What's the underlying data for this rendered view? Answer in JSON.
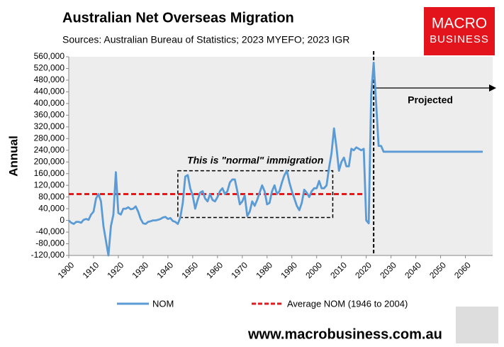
{
  "chart_data": {
    "type": "line",
    "title": "Australian Net Overseas Migration",
    "subtitle": "Sources: Australian Bureau of Statistics; 2023 MYEFO; 2023 IGR",
    "y_label": "Annual",
    "logo": [
      "MACRO",
      "BUSINESS"
    ],
    "footer": "www.macrobusiness.com.au",
    "xlim": [
      1900,
      2071
    ],
    "xticks": [
      1900,
      1910,
      1920,
      1930,
      1940,
      1950,
      1960,
      1970,
      1980,
      1990,
      2000,
      2010,
      2020,
      2030,
      2040,
      2050,
      2060
    ],
    "ylim": [
      -120000,
      560000
    ],
    "yticks": [
      {
        "value": -120000,
        "label": "-120,000"
      },
      {
        "value": -80000,
        "label": "-80,000"
      },
      {
        "value": -40000,
        "label": "-40,000"
      },
      0,
      {
        "value": 40000,
        "label": "40,000"
      },
      {
        "value": 80000,
        "label": "80,000"
      },
      {
        "value": 120000,
        "label": "120,000"
      },
      {
        "value": 160000,
        "label": "160,000"
      },
      {
        "value": 200000,
        "label": "200,000"
      },
      {
        "value": 240000,
        "label": "240,000"
      },
      {
        "value": 280000,
        "label": "280,000"
      },
      {
        "value": 320000,
        "label": "320,000"
      },
      {
        "value": 360000,
        "label": "360,000"
      },
      {
        "value": 400000,
        "label": "400,000"
      },
      {
        "value": 440000,
        "label": "440,000"
      },
      {
        "value": 480000,
        "label": "480,000"
      },
      {
        "value": 520000,
        "label": "520,000"
      },
      {
        "value": 560000,
        "label": "560,000"
      }
    ],
    "grid": false,
    "series": [
      {
        "name": "NOM",
        "color": "#5b9bd5",
        "line_style": "solid",
        "x": [
          1900,
          1901,
          1902,
          1903,
          1904,
          1905,
          1906,
          1907,
          1908,
          1909,
          1910,
          1911,
          1912,
          1913,
          1914,
          1915,
          1916,
          1917,
          1918,
          1919,
          1920,
          1921,
          1922,
          1923,
          1924,
          1925,
          1926,
          1927,
          1928,
          1929,
          1930,
          1931,
          1932,
          1933,
          1934,
          1935,
          1936,
          1937,
          1938,
          1939,
          1940,
          1941,
          1942,
          1943,
          1944,
          1945,
          1946,
          1947,
          1948,
          1949,
          1950,
          1951,
          1952,
          1953,
          1954,
          1955,
          1956,
          1957,
          1958,
          1959,
          1960,
          1961,
          1962,
          1963,
          1964,
          1965,
          1966,
          1967,
          1968,
          1969,
          1970,
          1971,
          1972,
          1973,
          1974,
          1975,
          1976,
          1977,
          1978,
          1979,
          1980,
          1981,
          1982,
          1983,
          1984,
          1985,
          1986,
          1987,
          1988,
          1989,
          1990,
          1991,
          1992,
          1993,
          1994,
          1995,
          1996,
          1997,
          1998,
          1999,
          2000,
          2001,
          2002,
          2003,
          2004,
          2005,
          2006,
          2007,
          2008,
          2009,
          2010,
          2011,
          2012,
          2013,
          2014,
          2015,
          2016,
          2017,
          2018,
          2019,
          2020,
          2021,
          2022,
          2023,
          2024,
          2025,
          2026,
          2027,
          2028,
          2029,
          2030,
          2031,
          2032,
          2033,
          2034,
          2035,
          2036,
          2037,
          2038,
          2039,
          2040,
          2041,
          2042,
          2043,
          2044,
          2045,
          2046,
          2047,
          2048,
          2049,
          2050,
          2051,
          2052,
          2053,
          2054,
          2055,
          2056,
          2057,
          2058,
          2059,
          2060,
          2061,
          2062,
          2063,
          2064,
          2065,
          2066,
          2067
        ],
        "values": [
          0,
          -8000,
          -12000,
          -5000,
          -5000,
          -8000,
          2000,
          5000,
          2000,
          20000,
          30000,
          75000,
          90000,
          65000,
          -20000,
          -70000,
          -120000,
          -20000,
          20000,
          165000,
          25000,
          20000,
          40000,
          40000,
          45000,
          38000,
          40000,
          48000,
          30000,
          5000,
          -10000,
          -12000,
          -5000,
          -3000,
          0,
          0,
          2000,
          5000,
          10000,
          12000,
          5000,
          8000,
          -2000,
          -5000,
          -12000,
          10000,
          60000,
          150000,
          155000,
          110000,
          85000,
          40000,
          70000,
          95000,
          100000,
          75000,
          65000,
          90000,
          70000,
          65000,
          80000,
          100000,
          110000,
          90000,
          100000,
          130000,
          140000,
          140000,
          100000,
          55000,
          65000,
          85000,
          15000,
          30000,
          65000,
          50000,
          70000,
          95000,
          120000,
          100000,
          55000,
          60000,
          100000,
          120000,
          90000,
          100000,
          130000,
          155000,
          170000,
          130000,
          100000,
          75000,
          50000,
          35000,
          60000,
          105000,
          95000,
          80000,
          100000,
          110000,
          110000,
          135000,
          110000,
          110000,
          120000,
          180000,
          230000,
          315000,
          250000,
          170000,
          200000,
          215000,
          185000,
          185000,
          245000,
          240000,
          250000,
          245000,
          240000,
          245000,
          0,
          -10000,
          430000,
          540000,
          400000,
          255000,
          255000,
          235000,
          235000,
          235000,
          235000,
          235000,
          235000,
          235000,
          235000,
          235000,
          235000,
          235000,
          235000,
          235000,
          235000,
          235000,
          235000,
          235000,
          235000,
          235000,
          235000,
          235000,
          235000,
          235000,
          235000,
          235000,
          235000,
          235000,
          235000,
          235000,
          235000,
          235000,
          235000,
          235000,
          235000,
          235000,
          235000,
          235000,
          235000,
          235000,
          235000,
          235000
        ]
      },
      {
        "name": "Average NOM (1946 to 2004)",
        "color": "#e31a1c",
        "line_style": "dashed",
        "x": [
          1900,
          2020
        ],
        "values": [
          90000,
          90000
        ]
      }
    ],
    "annotations": [
      {
        "text": "This is \"normal\" immigration",
        "xlim": [
          1944,
          2006.5
        ],
        "ylim": [
          10000,
          170000
        ]
      },
      {
        "text": "Projected",
        "x": 2023
      }
    ],
    "legend": "bottom"
  }
}
